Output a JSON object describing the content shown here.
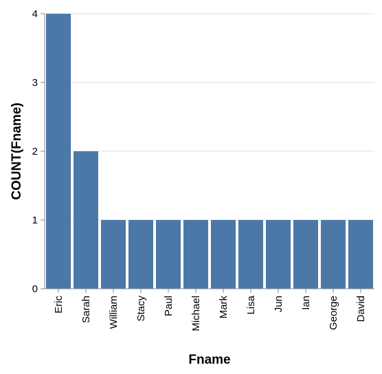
{
  "chart_data": {
    "type": "bar",
    "categories": [
      "Eric",
      "Sarah",
      "William",
      "Stacy",
      "Paul",
      "Michael",
      "Mark",
      "Lisa",
      "Jun",
      "Ian",
      "George",
      "David"
    ],
    "values": [
      4,
      2,
      1,
      1,
      1,
      1,
      1,
      1,
      1,
      1,
      1,
      1
    ],
    "xlabel": "Fname",
    "ylabel": "COUNT(Fname)",
    "ylim": [
      0,
      4
    ],
    "yticks": [
      "0",
      "1",
      "2",
      "3",
      "4"
    ],
    "grid": true,
    "bar_color": "#4c78a8",
    "grid_color": "#dddddd",
    "axis_color": "#888888"
  }
}
